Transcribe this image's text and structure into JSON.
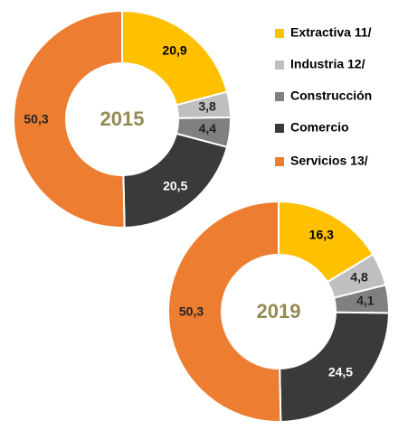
{
  "legend": {
    "categories": [
      "Extractiva 11/",
      "Industria 12/",
      "Construcción",
      "Comercio",
      "Servicios 13/"
    ],
    "colors": [
      "#FFC000",
      "#BFBFBF",
      "#808080",
      "#3A3A3A",
      "#ED7D31"
    ]
  },
  "chart_data": [
    {
      "type": "pie",
      "title": "2015",
      "values": [
        20.9,
        3.8,
        4.4,
        20.5,
        50.3
      ],
      "value_labels": [
        "20,9",
        "3,8",
        "4,4",
        "20,5",
        "50,3"
      ]
    },
    {
      "type": "pie",
      "title": "2019",
      "values": [
        16.3,
        4.8,
        4.1,
        24.5,
        50.3
      ],
      "value_labels": [
        "16,3",
        "4,8",
        "4,1",
        "24,5",
        "50,3"
      ]
    }
  ]
}
